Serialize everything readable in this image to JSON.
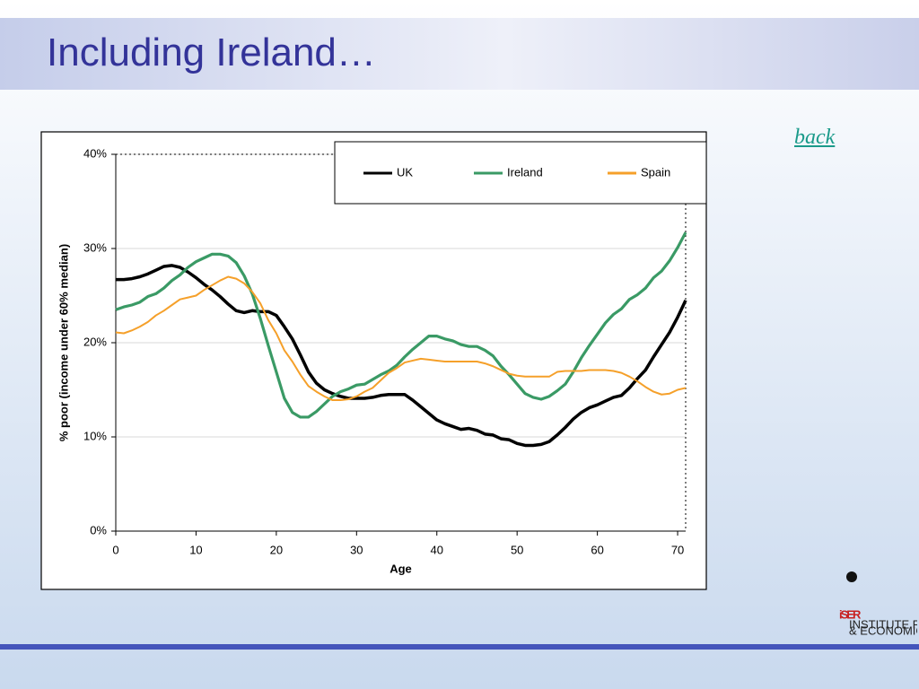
{
  "slide": {
    "title": "Including Ireland…",
    "link": "back",
    "logo": {
      "name": "iSER",
      "lines": [
        "INSTITUTE FOR SOCIAL",
        "& ECONOMIC RESEARCH"
      ]
    }
  },
  "chart_data": {
    "type": "line",
    "x": [
      0,
      1,
      2,
      3,
      4,
      5,
      6,
      7,
      8,
      9,
      10,
      11,
      12,
      13,
      14,
      15,
      16,
      17,
      18,
      19,
      20,
      21,
      22,
      23,
      24,
      25,
      26,
      27,
      28,
      29,
      30,
      31,
      32,
      33,
      34,
      35,
      36,
      37,
      38,
      39,
      40,
      41,
      42,
      43,
      44,
      45,
      46,
      47,
      48,
      49,
      50,
      51,
      52,
      53,
      54,
      55,
      56,
      57,
      58,
      59,
      60,
      61,
      62,
      63,
      64,
      65,
      66,
      67,
      68,
      69,
      70,
      71
    ],
    "xlabel": "Age",
    "ylabel": "% poor (income under 60% median)",
    "xlim": [
      0,
      71
    ],
    "xticks": [
      0,
      10,
      20,
      30,
      40,
      50,
      60,
      70
    ],
    "ylim": [
      0,
      40
    ],
    "yticks": [
      {
        "value": 0,
        "label": "0%"
      },
      {
        "value": 10,
        "label": "10%"
      },
      {
        "value": 20,
        "label": "20%"
      },
      {
        "value": 30,
        "label": "30%"
      },
      {
        "value": 40,
        "label": "40%"
      }
    ],
    "grid": true,
    "legend": "top-right",
    "series": [
      {
        "name": "UK",
        "color": "#000000",
        "values": [
          26.7,
          26.7,
          26.8,
          27.0,
          27.3,
          27.7,
          28.1,
          28.2,
          28.0,
          27.5,
          26.9,
          26.2,
          25.6,
          24.9,
          24.1,
          23.4,
          23.2,
          23.4,
          23.3,
          23.3,
          22.9,
          21.7,
          20.4,
          18.7,
          16.9,
          15.7,
          15.0,
          14.6,
          14.3,
          14.1,
          14.1,
          14.1,
          14.2,
          14.4,
          14.5,
          14.5,
          14.5,
          13.9,
          13.2,
          12.5,
          11.8,
          11.4,
          11.1,
          10.8,
          10.9,
          10.7,
          10.3,
          10.2,
          9.8,
          9.7,
          9.3,
          9.1,
          9.1,
          9.2,
          9.5,
          10.2,
          11.0,
          11.9,
          12.6,
          13.1,
          13.4,
          13.8,
          14.2,
          14.4,
          15.2,
          16.2,
          17.1,
          18.5,
          19.8,
          21.1,
          22.7,
          24.5
        ]
      },
      {
        "name": "Ireland",
        "color": "#3a9a65",
        "values": [
          23.5,
          23.8,
          24.0,
          24.3,
          24.9,
          25.2,
          25.8,
          26.6,
          27.2,
          28.0,
          28.6,
          29.0,
          29.4,
          29.4,
          29.2,
          28.5,
          27.1,
          25.2,
          22.6,
          19.7,
          16.9,
          14.1,
          12.6,
          12.1,
          12.1,
          12.7,
          13.5,
          14.3,
          14.8,
          15.1,
          15.5,
          15.6,
          16.1,
          16.6,
          17.0,
          17.6,
          18.5,
          19.3,
          20.0,
          20.7,
          20.7,
          20.4,
          20.2,
          19.8,
          19.6,
          19.6,
          19.2,
          18.6,
          17.5,
          16.6,
          15.6,
          14.6,
          14.2,
          14.0,
          14.3,
          14.9,
          15.6,
          16.9,
          18.4,
          19.7,
          20.9,
          22.1,
          23.0,
          23.6,
          24.6,
          25.1,
          25.8,
          26.9,
          27.6,
          28.7,
          30.1,
          31.7
        ]
      },
      {
        "name": "Spain",
        "color": "#f5a02a",
        "values": [
          21.1,
          21.0,
          21.3,
          21.7,
          22.2,
          22.9,
          23.4,
          24.0,
          24.6,
          24.8,
          25.0,
          25.6,
          26.1,
          26.6,
          27.0,
          26.8,
          26.3,
          25.4,
          24.2,
          22.4,
          21.0,
          19.2,
          18.0,
          16.6,
          15.4,
          14.8,
          14.3,
          13.9,
          13.9,
          14.0,
          14.3,
          14.8,
          15.2,
          16.0,
          16.8,
          17.3,
          17.9,
          18.1,
          18.3,
          18.2,
          18.1,
          18.0,
          18.0,
          18.0,
          18.0,
          18.0,
          17.8,
          17.5,
          17.1,
          16.7,
          16.5,
          16.4,
          16.4,
          16.4,
          16.4,
          16.9,
          17.0,
          17.0,
          17.0,
          17.1,
          17.1,
          17.1,
          17.0,
          16.8,
          16.4,
          15.9,
          15.3,
          14.8,
          14.5,
          14.6,
          15.0,
          15.2
        ]
      }
    ]
  }
}
